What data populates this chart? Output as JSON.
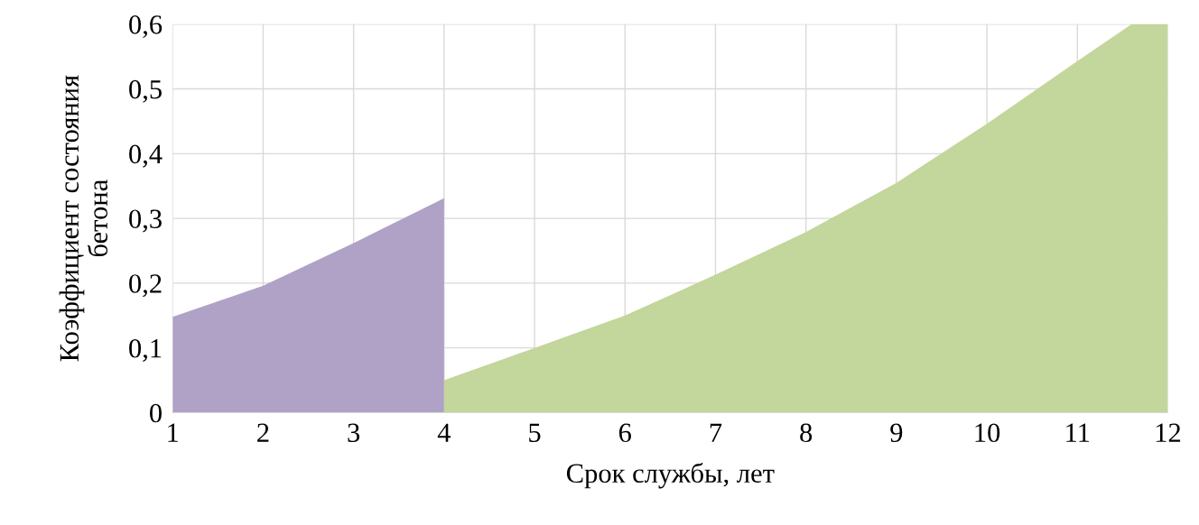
{
  "chart_data": {
    "type": "area",
    "xlabel": "Срок службы, лет",
    "ylabel": "Коэффициент состояния\nбетона",
    "series": [
      {
        "color": "#b0a1c7",
        "x": [
          1,
          2,
          3,
          4
        ],
        "values": [
          0.148,
          0.196,
          0.262,
          0.331
        ]
      },
      {
        "color": "#c3d69b",
        "x": [
          4,
          5,
          6,
          7,
          8,
          9,
          10,
          11,
          11.6,
          12
        ],
        "values": [
          0.05,
          0.1,
          0.15,
          0.213,
          0.279,
          0.355,
          0.446,
          0.543,
          0.6,
          0.6
        ]
      }
    ],
    "xlim": [
      1,
      12
    ],
    "xticks": [
      1,
      2,
      3,
      4,
      5,
      6,
      7,
      8,
      9,
      10,
      11,
      12
    ],
    "ylim": [
      0,
      0.6
    ],
    "yticks": [
      {
        "value": 0,
        "label": "0"
      },
      {
        "value": 0.1,
        "label": "0,1"
      },
      {
        "value": 0.2,
        "label": "0,2"
      },
      {
        "value": 0.3,
        "label": "0,3"
      },
      {
        "value": 0.4,
        "label": "0,4"
      },
      {
        "value": 0.5,
        "label": "0,5"
      },
      {
        "value": 0.6,
        "label": "0,6"
      }
    ],
    "grid": true
  }
}
